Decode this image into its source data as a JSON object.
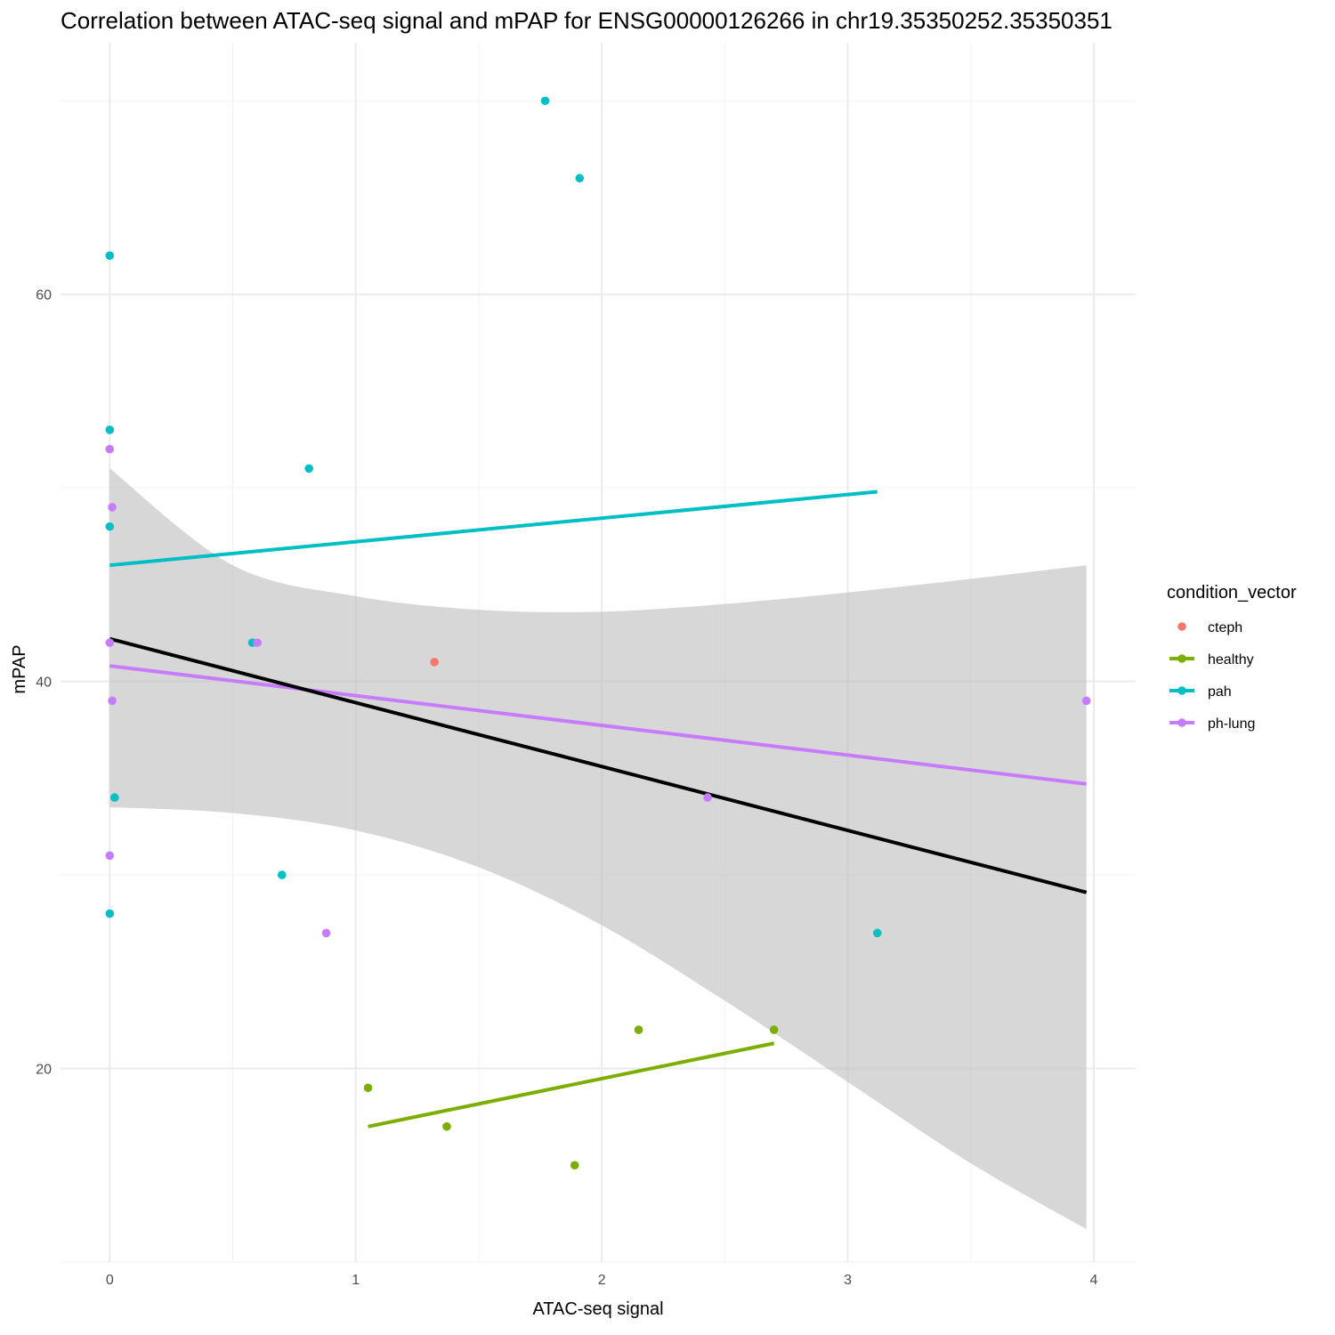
{
  "chart_data": {
    "type": "scatter",
    "title": "Correlation between ATAC-seq signal and mPAP for ENSG00000126266 in chr19.35350252.35350351",
    "xlabel": "ATAC-seq signal",
    "ylabel": "mPAP",
    "xlim": [
      -0.2,
      4.17
    ],
    "ylim": [
      10,
      73
    ],
    "x_ticks": [
      0,
      1,
      2,
      3,
      4
    ],
    "x_tick_labels": [
      "0",
      "1",
      "2",
      "3",
      "4"
    ],
    "y_ticks": [
      20,
      40,
      60
    ],
    "y_tick_labels": [
      "20",
      "40",
      "60"
    ],
    "legend": {
      "title": "condition_vector",
      "position": "right",
      "entries": [
        {
          "label": "cteph",
          "color": "#F8766D",
          "line": false
        },
        {
          "label": "healthy",
          "color": "#7CAE00",
          "line": true
        },
        {
          "label": "pah",
          "color": "#00BFC4",
          "line": true
        },
        {
          "label": "ph-lung",
          "color": "#C77CFF",
          "line": true
        }
      ]
    },
    "series": [
      {
        "name": "cteph",
        "color": "#F8766D",
        "points": [
          [
            1.32,
            41
          ]
        ]
      },
      {
        "name": "healthy",
        "color": "#7CAE00",
        "points": [
          [
            1.05,
            19
          ],
          [
            1.37,
            17
          ],
          [
            1.89,
            15
          ],
          [
            2.15,
            22
          ],
          [
            2.7,
            22
          ]
        ],
        "fit": [
          [
            1.05,
            17
          ],
          [
            2.7,
            21.3
          ]
        ]
      },
      {
        "name": "pah",
        "color": "#00BFC4",
        "points": [
          [
            1.77,
            70
          ],
          [
            1.91,
            66
          ],
          [
            0.0,
            62
          ],
          [
            0.0,
            53
          ],
          [
            0.81,
            51
          ],
          [
            0.0,
            48
          ],
          [
            0.58,
            42
          ],
          [
            0.02,
            34
          ],
          [
            0.7,
            30
          ],
          [
            0.0,
            28
          ],
          [
            3.12,
            27
          ]
        ],
        "fit": [
          [
            0.0,
            46
          ],
          [
            3.12,
            49.8
          ]
        ]
      },
      {
        "name": "ph-lung",
        "color": "#C77CFF",
        "points": [
          [
            0.0,
            52
          ],
          [
            0.01,
            49
          ],
          [
            0.0,
            42
          ],
          [
            0.01,
            39
          ],
          [
            0.6,
            42
          ],
          [
            2.43,
            34
          ],
          [
            3.97,
            39
          ],
          [
            0.0,
            31
          ],
          [
            0.88,
            27
          ]
        ],
        "fit": [
          [
            0.0,
            40.8
          ],
          [
            3.97,
            34.7
          ]
        ]
      }
    ],
    "overall_fit": {
      "color": "#000000",
      "line": [
        [
          0.0,
          42.2
        ],
        [
          3.97,
          29.1
        ]
      ],
      "ci_band_color": "#bdbdbd",
      "ci_band": [
        {
          "x": 0.0,
          "lo": 33.5,
          "hi": 51.0
        },
        {
          "x": 0.5,
          "lo": 33.2,
          "hi": 46.0
        },
        {
          "x": 1.0,
          "lo": 32.3,
          "hi": 44.4
        },
        {
          "x": 1.5,
          "lo": 30.4,
          "hi": 43.7
        },
        {
          "x": 2.0,
          "lo": 27.4,
          "hi": 43.6
        },
        {
          "x": 2.5,
          "lo": 23.5,
          "hi": 44.0
        },
        {
          "x": 3.0,
          "lo": 19.3,
          "hi": 44.6
        },
        {
          "x": 3.5,
          "lo": 15.1,
          "hi": 45.3
        },
        {
          "x": 3.97,
          "lo": 11.7,
          "hi": 46.0
        }
      ]
    }
  }
}
